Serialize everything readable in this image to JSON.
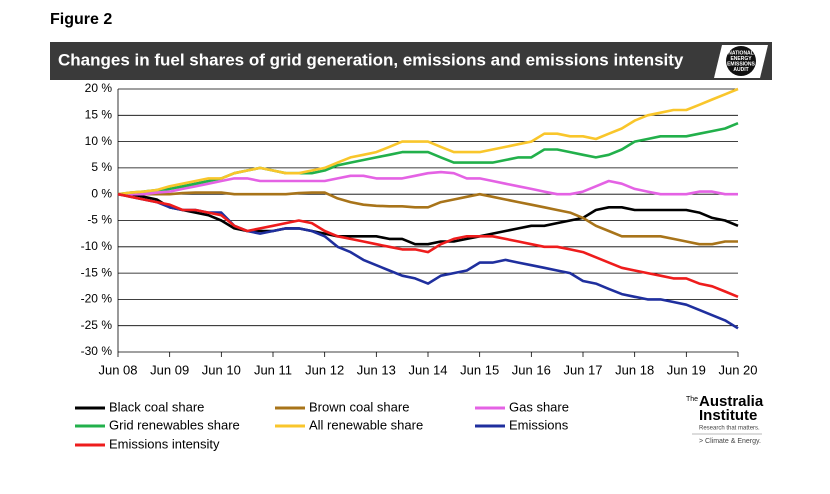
{
  "figure_label": "Figure 2",
  "badge": {
    "lines": [
      "NATIONAL",
      "ENERGY",
      "EMISSIONS",
      "AUDIT"
    ]
  },
  "institute_logo": {
    "prefix": "The",
    "name_lines": [
      "Australia",
      "Institute"
    ],
    "tagline": "Research that matters.",
    "program": "> Climate & Energy."
  },
  "chart_data": {
    "type": "line",
    "title": "Changes in  fuel shares of grid generation, emissions and emissions intensity",
    "categories": [
      "Jun 08",
      null,
      null,
      null,
      "Jun 09",
      null,
      null,
      null,
      "Jun 10",
      null,
      null,
      null,
      "Jun 11",
      null,
      null,
      null,
      "Jun 12",
      null,
      null,
      null,
      "Jun 13",
      null,
      null,
      null,
      "Jun 14",
      null,
      null,
      null,
      "Jun 15",
      null,
      null,
      null,
      "Jun 16",
      null,
      null,
      null,
      "Jun 17",
      null,
      null,
      null,
      "Jun 18",
      null,
      null,
      null,
      "Jun 19",
      null,
      null,
      null,
      "Jun 20"
    ],
    "ylim": [
      -30,
      20
    ],
    "yticks": [
      {
        "value": -30,
        "label": "-30 %"
      },
      {
        "value": -25,
        "label": "-25 %"
      },
      {
        "value": -20,
        "label": "-20 %"
      },
      {
        "value": -15,
        "label": "-15 %"
      },
      {
        "value": -10,
        "label": "-10 %"
      },
      {
        "value": -5,
        "label": "-5 %"
      },
      {
        "value": 0,
        "label": "0 %"
      },
      {
        "value": 5,
        "label": "5 %"
      },
      {
        "value": 10,
        "label": "10 %"
      },
      {
        "value": 15,
        "label": "15 %"
      },
      {
        "value": 20,
        "label": "20 %"
      }
    ],
    "grid": true,
    "legend": "bottom",
    "series": [
      {
        "name": "Black coal share",
        "color": "#000000",
        "values": [
          0,
          0,
          -0.5,
          -1,
          -2.5,
          -3,
          -3.5,
          -4,
          -5,
          -6.5,
          -7,
          -7,
          -7,
          -6.5,
          -6.5,
          -7,
          -7.5,
          -8,
          -8,
          -8,
          -8,
          -8.5,
          -8.5,
          -9.5,
          -9.5,
          -9,
          -9,
          -8.5,
          -8,
          -7.5,
          -7,
          -6.5,
          -6,
          -6,
          -5.5,
          -5,
          -4.5,
          -3,
          -2.5,
          -2.5,
          -3,
          -3,
          -3,
          -3,
          -3,
          -3.5,
          -4.5,
          -5,
          -6
        ]
      },
      {
        "name": "Brown coal share",
        "color": "#a8741a",
        "values": [
          0,
          0,
          0,
          0,
          0,
          0.2,
          0.3,
          0.3,
          0.3,
          0,
          0,
          0,
          0,
          0,
          0.2,
          0.3,
          0.3,
          -0.8,
          -1.5,
          -2,
          -2.2,
          -2.3,
          -2.3,
          -2.5,
          -2.5,
          -1.5,
          -1,
          -0.5,
          0,
          -0.5,
          -1,
          -1.5,
          -2,
          -2.5,
          -3,
          -3.5,
          -4.5,
          -6,
          -7,
          -8,
          -8,
          -8,
          -8,
          -8.5,
          -9,
          -9.5,
          -9.5,
          -9,
          -9
        ]
      },
      {
        "name": "Gas share",
        "color": "#e462e4",
        "values": [
          0,
          0,
          0,
          0.3,
          0.5,
          1,
          1.5,
          2,
          2.5,
          3,
          3,
          2.5,
          2.5,
          2.5,
          2.5,
          2.5,
          2.5,
          3,
          3.5,
          3.5,
          3,
          3,
          3,
          3.5,
          4,
          4.2,
          4,
          3,
          3,
          2.5,
          2,
          1.5,
          1,
          0.5,
          0,
          0,
          0.5,
          1.5,
          2.5,
          2,
          1,
          0.5,
          0,
          0,
          0,
          0.5,
          0.5,
          0,
          0
        ]
      },
      {
        "name": "Grid renewables share",
        "color": "#22b04b",
        "values": [
          0,
          0.3,
          0.5,
          0.8,
          1,
          1.5,
          2,
          2.5,
          3,
          4,
          4.5,
          5,
          4.5,
          4,
          4,
          4,
          4.5,
          5.5,
          6,
          6.5,
          7,
          7.5,
          8,
          8,
          8,
          7,
          6,
          6,
          6,
          6,
          6.5,
          7,
          7,
          8.5,
          8.5,
          8,
          7.5,
          7,
          7.5,
          8.5,
          10,
          10.5,
          11,
          11,
          11,
          11.5,
          12,
          12.5,
          13.5
        ]
      },
      {
        "name": "All renewable share",
        "color": "#f9c62b",
        "values": [
          0,
          0.3,
          0.5,
          0.8,
          1.5,
          2,
          2.5,
          3,
          3,
          4,
          4.5,
          5,
          4.5,
          4,
          4,
          4.5,
          5,
          6,
          7,
          7.5,
          8,
          9,
          10,
          10,
          10,
          9,
          8,
          8,
          8,
          8.5,
          9,
          9.5,
          10,
          11.5,
          11.5,
          11,
          11,
          10.5,
          11.5,
          12.5,
          14,
          15,
          15.5,
          16,
          16,
          17,
          18,
          19,
          20
        ]
      },
      {
        "name": "Emissions",
        "color": "#1f2f9e",
        "values": [
          0,
          -0.5,
          -1,
          -1.5,
          -2.5,
          -3,
          -3,
          -3.5,
          -3.5,
          -6,
          -7,
          -7.5,
          -7,
          -6.5,
          -6.5,
          -7,
          -8,
          -10,
          -11,
          -12.5,
          -13.5,
          -14.5,
          -15.5,
          -16,
          -17,
          -15.5,
          -15,
          -14.5,
          -13,
          -13,
          -12.5,
          -13,
          -13.5,
          -14,
          -14.5,
          -15,
          -16.5,
          -17,
          -18,
          -19,
          -19.5,
          -20,
          -20,
          -20.5,
          -21,
          -22,
          -23,
          -24,
          -25.5
        ]
      },
      {
        "name": "Emissions intensity",
        "color": "#ee1c1c",
        "values": [
          0,
          -0.5,
          -1,
          -1.5,
          -2,
          -3,
          -3,
          -3.5,
          -4,
          -6,
          -7,
          -6.5,
          -6,
          -5.5,
          -5,
          -5.5,
          -7,
          -8,
          -8.5,
          -9,
          -9.5,
          -10,
          -10.5,
          -10.5,
          -11,
          -9.5,
          -8.5,
          -8,
          -8,
          -8,
          -8.5,
          -9,
          -9.5,
          -10,
          -10,
          -10.5,
          -11,
          -12,
          -13,
          -14,
          -14.5,
          -15,
          -15.5,
          -16,
          -16,
          -17,
          -17.5,
          -18.5,
          -19.5
        ]
      }
    ]
  }
}
